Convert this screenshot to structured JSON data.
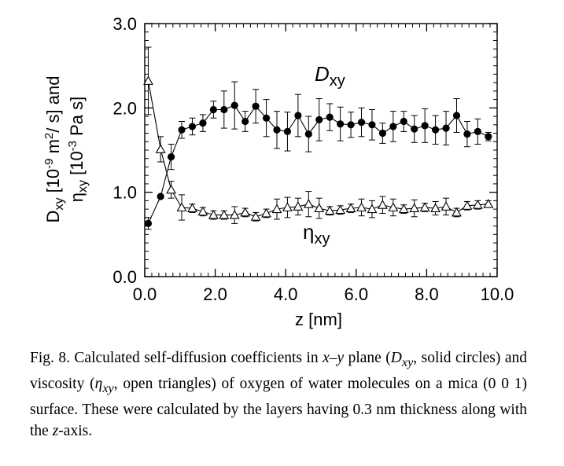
{
  "chart_data": {
    "type": "scatter",
    "title": "",
    "xlabel": "z [nm]",
    "ylabel_lines": [
      "D<sub>xy</sub> [10<sup>-9</sup> m<sup>2</sup>/ s] and",
      "η<sub>xy</sub> [10<sup>-3</sup> Pa s]"
    ],
    "xlim": [
      0,
      10
    ],
    "ylim": [
      0,
      3
    ],
    "x_ticks": [
      0,
      2,
      4,
      6,
      8,
      10
    ],
    "x_tick_labels": [
      "0.0",
      "2.0",
      "4.0",
      "6.0",
      "8.0",
      "10.0"
    ],
    "y_ticks": [
      0,
      1,
      2,
      3
    ],
    "y_tick_labels": [
      "0.0",
      "1.0",
      "2.0",
      "3.0"
    ],
    "series": [
      {
        "name": "D_xy",
        "label_main": "D",
        "label_sub": "xy",
        "marker": "solid circle",
        "x": [
          0.1,
          0.45,
          0.75,
          1.05,
          1.35,
          1.65,
          1.95,
          2.25,
          2.55,
          2.85,
          3.15,
          3.45,
          3.75,
          4.05,
          4.35,
          4.65,
          4.95,
          5.25,
          5.55,
          5.85,
          6.15,
          6.45,
          6.75,
          7.05,
          7.35,
          7.65,
          7.95,
          8.25,
          8.55,
          8.85,
          9.15,
          9.45,
          9.75
        ],
        "y": [
          0.63,
          0.95,
          1.42,
          1.74,
          1.78,
          1.82,
          1.98,
          1.98,
          2.03,
          1.84,
          2.02,
          1.88,
          1.74,
          1.72,
          1.91,
          1.69,
          1.86,
          1.89,
          1.81,
          1.8,
          1.83,
          1.8,
          1.7,
          1.78,
          1.84,
          1.75,
          1.79,
          1.74,
          1.76,
          1.91,
          1.69,
          1.72,
          1.66
        ],
        "err": [
          0.07,
          0.0,
          0.15,
          0.1,
          0.1,
          0.1,
          0.1,
          0.22,
          0.28,
          0.12,
          0.2,
          0.22,
          0.22,
          0.23,
          0.25,
          0.21,
          0.25,
          0.16,
          0.2,
          0.15,
          0.17,
          0.18,
          0.12,
          0.18,
          0.12,
          0.16,
          0.2,
          0.17,
          0.2,
          0.2,
          0.15,
          0.15,
          0.05
        ]
      },
      {
        "name": "eta_xy",
        "label_main": "η",
        "label_sub": "xy",
        "marker": "open triangle",
        "x": [
          0.1,
          0.45,
          0.75,
          1.05,
          1.35,
          1.65,
          1.95,
          2.25,
          2.55,
          2.85,
          3.15,
          3.45,
          3.75,
          4.05,
          4.35,
          4.65,
          4.95,
          5.25,
          5.55,
          5.85,
          6.15,
          6.45,
          6.75,
          7.05,
          7.35,
          7.65,
          7.95,
          8.25,
          8.55,
          8.85,
          9.15,
          9.45,
          9.75
        ],
        "y": [
          2.32,
          1.51,
          1.03,
          0.82,
          0.81,
          0.77,
          0.73,
          0.73,
          0.73,
          0.76,
          0.71,
          0.75,
          0.8,
          0.82,
          0.83,
          0.86,
          0.81,
          0.78,
          0.79,
          0.81,
          0.82,
          0.8,
          0.85,
          0.82,
          0.8,
          0.81,
          0.82,
          0.81,
          0.83,
          0.76,
          0.84,
          0.85,
          0.86
        ],
        "err": [
          0.4,
          0.15,
          0.1,
          0.15,
          0.05,
          0.05,
          0.05,
          0.05,
          0.1,
          0.05,
          0.05,
          0.05,
          0.12,
          0.12,
          0.1,
          0.15,
          0.12,
          0.05,
          0.05,
          0.05,
          0.1,
          0.1,
          0.1,
          0.1,
          0.05,
          0.1,
          0.05,
          0.08,
          0.1,
          0.05,
          0.05,
          0.05,
          0.04
        ]
      }
    ]
  },
  "caption": {
    "lead": "Fig. 8.  Calculated self-diffusion coefficients in ",
    "xy_plane": "x–y",
    "mid1": " plane (",
    "D_main": "D",
    "D_sub": "xy",
    "mid2": ", solid circles) and viscosity (",
    "eta_main": "η",
    "eta_sub": "xy",
    "mid3": ", open triangles) of oxygen of water molecules on a mica (0 0 1) surface. These were calculated by the layers having 0.3 nm thickness along with the ",
    "z_axis": "z",
    "tail": "-axis."
  }
}
